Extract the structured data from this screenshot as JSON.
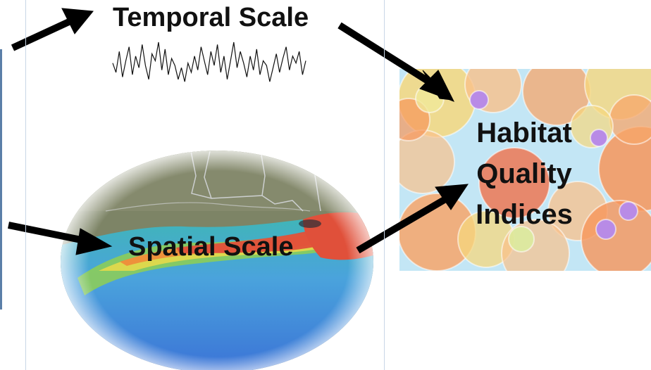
{
  "labels": {
    "temporal": "Temporal Scale",
    "spatial": "Spatial Scale",
    "habitat": [
      "Habitat",
      "Quality",
      "Indices"
    ]
  },
  "timeseries": [
    0.55,
    0.35,
    0.8,
    0.25,
    0.6,
    0.9,
    0.3,
    0.7,
    0.45,
    0.95,
    0.5,
    0.2,
    0.75,
    0.6,
    1.0,
    0.4,
    0.85,
    0.3,
    0.65,
    0.5,
    0.2,
    0.45,
    0.15,
    0.55,
    0.35,
    0.7,
    0.4,
    0.9,
    0.6,
    0.3,
    0.8,
    0.5,
    0.95,
    0.35,
    0.7,
    0.2,
    0.6,
    1.0,
    0.45,
    0.8,
    0.55,
    0.25,
    0.7,
    0.4,
    0.85,
    0.3,
    0.6,
    0.5,
    0.15,
    0.45,
    0.75,
    0.35,
    0.65,
    0.9,
    0.4,
    0.7,
    0.55,
    0.8,
    0.3,
    0.6
  ],
  "colors": {
    "arrow": "#000000",
    "background": "#ffffff",
    "panel_lines": "#c8d6e6",
    "bubble_bg": "#c3e6f5",
    "hypoxia_red": "#e0503a",
    "ocean_blue": "#4a7fc8",
    "land": "#7d8466"
  }
}
